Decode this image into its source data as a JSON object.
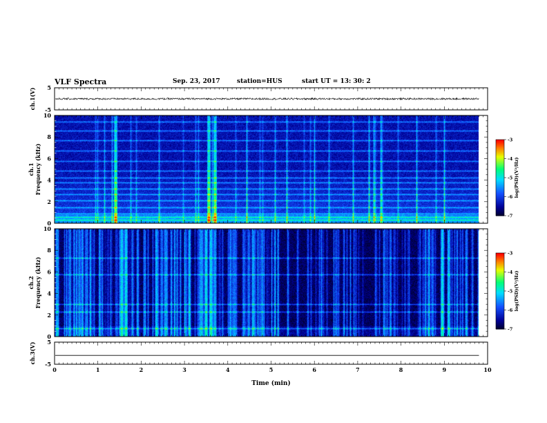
{
  "header": {
    "title": "VLF Spectra",
    "date": "Sep. 23, 2017",
    "station": "station=HUS",
    "start_ut": "start  UT =   13: 30: 2"
  },
  "colors": {
    "background_dark": "#000050",
    "spectrum_mid": "#1e50ff",
    "burst": "#00ffd0",
    "line": "#000000"
  },
  "chart_data": [
    {
      "type": "line",
      "name": "ch1-waveform",
      "ylabel": "ch.1(V)",
      "ylim": [
        -5,
        5
      ],
      "yticks": [
        "5",
        "-5"
      ],
      "x": [
        0,
        9.8
      ],
      "y_mean": 0,
      "y_amplitude_approx": 0.4
    },
    {
      "type": "heatmap",
      "name": "ch1-spectrogram",
      "ylabel": "ch.1\nFrequency (kHz)",
      "yticks": [
        "0",
        "2",
        "4",
        "6",
        "8",
        "10"
      ],
      "ylim": [
        0,
        10
      ],
      "xlim": [
        0,
        10
      ],
      "data_extent_min": 9.8,
      "colorbar": {
        "label": "log(PSD)(V²/Hz)",
        "ticks": [
          "-3",
          "-4",
          "-5",
          "-6",
          "-7"
        ],
        "range": [
          -7,
          -3
        ]
      },
      "bands_khz": [
        0.3,
        0.6,
        0.9,
        1.5,
        2.1,
        2.7,
        3.2,
        3.8,
        4.2,
        4.9,
        5.8,
        6.7,
        7.7,
        8.6,
        9.4
      ],
      "strong_bursts_min": [
        1.4,
        3.55,
        3.7
      ]
    },
    {
      "type": "heatmap",
      "name": "ch2-spectrogram",
      "ylabel": "ch.2\nFrequency (kHz)",
      "yticks": [
        "0",
        "2",
        "4",
        "6",
        "8",
        "10"
      ],
      "ylim": [
        0,
        10
      ],
      "xlim": [
        0,
        10
      ],
      "data_extent_min": 9.8,
      "colorbar": {
        "label": "log(PSD)(V²/Hz)",
        "ticks": [
          "-3",
          "-4",
          "-5",
          "-6",
          "-7"
        ],
        "range": [
          -7,
          -3
        ]
      },
      "bands_khz": [
        0.8,
        2.3,
        3.0,
        5.8,
        7.3
      ],
      "strong_bursts_min": [
        1.55,
        1.65,
        3.5,
        3.6,
        8.95
      ]
    },
    {
      "type": "line",
      "name": "ch3-waveform",
      "ylabel": "ch.3(V)",
      "ylim": [
        -5,
        5
      ],
      "yticks": [
        "5",
        "-5"
      ],
      "x": [
        0,
        9.8
      ],
      "y_constant": -1
    }
  ],
  "x_axis": {
    "label": "Time (min)",
    "ticks": [
      "0",
      "1",
      "2",
      "3",
      "4",
      "5",
      "6",
      "7",
      "8",
      "9",
      "10"
    ],
    "range": [
      0,
      10
    ]
  }
}
